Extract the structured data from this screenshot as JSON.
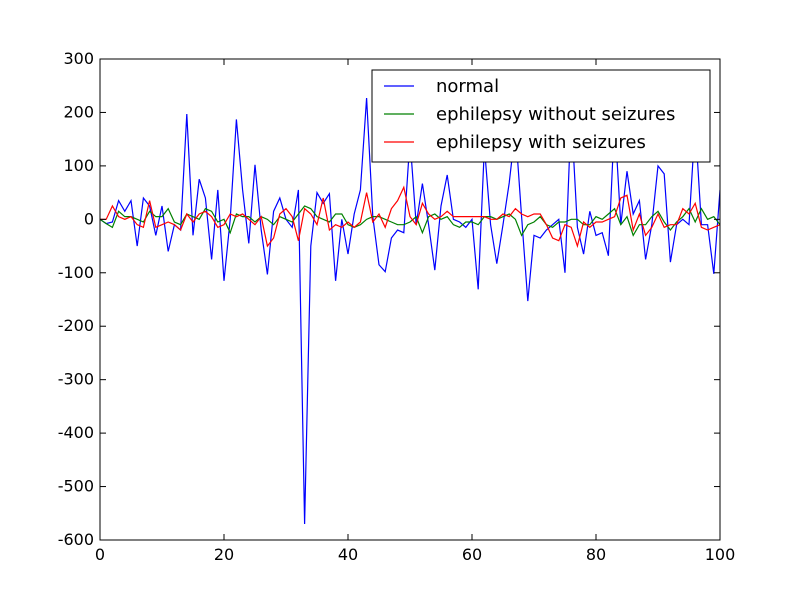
{
  "chart_data": {
    "type": "line",
    "title": "",
    "xlabel": "",
    "ylabel": "",
    "xlim": [
      0,
      100
    ],
    "ylim": [
      -600,
      300
    ],
    "xticks": [
      0,
      20,
      40,
      60,
      80,
      100
    ],
    "yticks": [
      -600,
      -500,
      -400,
      -300,
      -200,
      -100,
      0,
      100,
      200,
      300
    ],
    "grid": false,
    "legend_position": "top-right",
    "series": [
      {
        "name": "normal",
        "color": "#0000ff",
        "values": [
          0,
          -8,
          -5,
          35,
          15,
          35,
          -50,
          40,
          25,
          -30,
          25,
          -60,
          -10,
          -20,
          197,
          -30,
          75,
          40,
          -75,
          55,
          -115,
          0,
          187,
          55,
          -45,
          102,
          -20,
          -103,
          15,
          40,
          0,
          -15,
          55,
          -570,
          -50,
          50,
          30,
          48,
          -115,
          0,
          -65,
          10,
          55,
          227,
          5,
          -85,
          -98,
          -35,
          -20,
          -25,
          150,
          -10,
          67,
          -10,
          -95,
          25,
          83,
          0,
          -5,
          -15,
          0,
          -131,
          136,
          -10,
          -83,
          -10,
          68,
          170,
          5,
          -153,
          -30,
          -35,
          -20,
          -10,
          0,
          -100,
          200,
          -15,
          -65,
          15,
          -30,
          -25,
          -68,
          190,
          -10,
          90,
          10,
          35,
          -75,
          -10,
          100,
          85,
          -80,
          -10,
          0,
          -10,
          180,
          -10,
          -10,
          -102,
          55
        ]
      },
      {
        "name": "ephilepsy without seizures",
        "color": "#008000",
        "values": [
          0,
          -8,
          -15,
          15,
          5,
          5,
          0,
          -5,
          15,
          5,
          5,
          20,
          -5,
          -10,
          10,
          5,
          0,
          20,
          15,
          -5,
          0,
          -25,
          10,
          5,
          5,
          -5,
          5,
          0,
          -10,
          5,
          0,
          -5,
          10,
          25,
          20,
          5,
          0,
          -5,
          10,
          10,
          -10,
          -15,
          -10,
          0,
          5,
          5,
          0,
          -5,
          -10,
          -10,
          -5,
          5,
          -25,
          5,
          10,
          0,
          5,
          -10,
          -15,
          -5,
          -5,
          -10,
          5,
          5,
          0,
          5,
          10,
          0,
          -30,
          -10,
          -5,
          5,
          -10,
          -15,
          -5,
          -5,
          0,
          0,
          -10,
          -10,
          5,
          0,
          10,
          20,
          -10,
          5,
          -30,
          -10,
          -10,
          5,
          15,
          -5,
          -20,
          -5,
          5,
          20,
          -5,
          20,
          0,
          5,
          -10
        ]
      },
      {
        "name": "ephilepsy with seizures",
        "color": "#ff0000",
        "values": [
          0,
          0,
          25,
          5,
          0,
          5,
          -10,
          -15,
          35,
          -15,
          -10,
          -5,
          -10,
          -20,
          10,
          -5,
          10,
          15,
          5,
          -15,
          -10,
          10,
          5,
          10,
          0,
          -10,
          5,
          -50,
          -35,
          10,
          20,
          5,
          -40,
          20,
          10,
          -10,
          40,
          -20,
          -10,
          -15,
          -5,
          -15,
          -5,
          50,
          -5,
          10,
          -15,
          20,
          35,
          60,
          5,
          -10,
          30,
          10,
          0,
          5,
          15,
          5,
          5,
          5,
          5,
          5,
          5,
          0,
          0,
          10,
          5,
          20,
          10,
          5,
          10,
          10,
          -10,
          -35,
          -40,
          -10,
          -15,
          -50,
          -5,
          -15,
          -5,
          -5,
          0,
          5,
          40,
          45,
          -20,
          10,
          -30,
          -15,
          10,
          -15,
          -10,
          -10,
          20,
          10,
          30,
          -15,
          -20,
          -15,
          -10
        ]
      }
    ]
  }
}
